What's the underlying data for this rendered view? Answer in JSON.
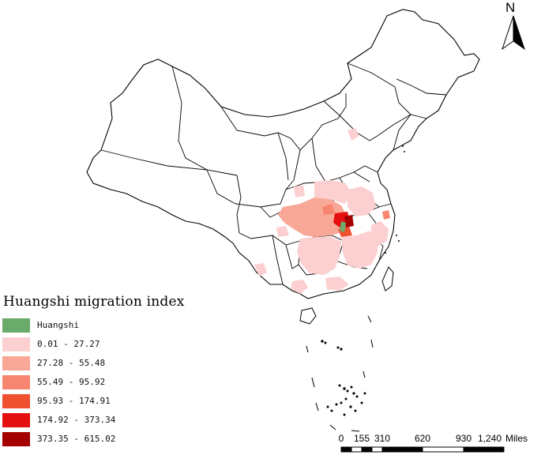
{
  "legend": {
    "title": "Huangshi migration index",
    "items": [
      {
        "label": "Huangshi",
        "color": "#6aaa6a"
      },
      {
        "label": "0.01 - 27.27",
        "color": "#fcd0d0"
      },
      {
        "label": "27.28 - 55.48",
        "color": "#f9a898"
      },
      {
        "label": "55.49 - 95.92",
        "color": "#f68670"
      },
      {
        "label": "95.93 - 174.91",
        "color": "#ee5030"
      },
      {
        "label": "174.92 - 373.34",
        "color": "#e41010"
      },
      {
        "label": "373.35 - 615.02",
        "color": "#a40000"
      }
    ]
  },
  "north_arrow": {
    "label": "N"
  },
  "scale_bar": {
    "ticks": [
      "0",
      "155",
      "310",
      "620",
      "930",
      "1,240"
    ],
    "unit": "Miles"
  }
}
